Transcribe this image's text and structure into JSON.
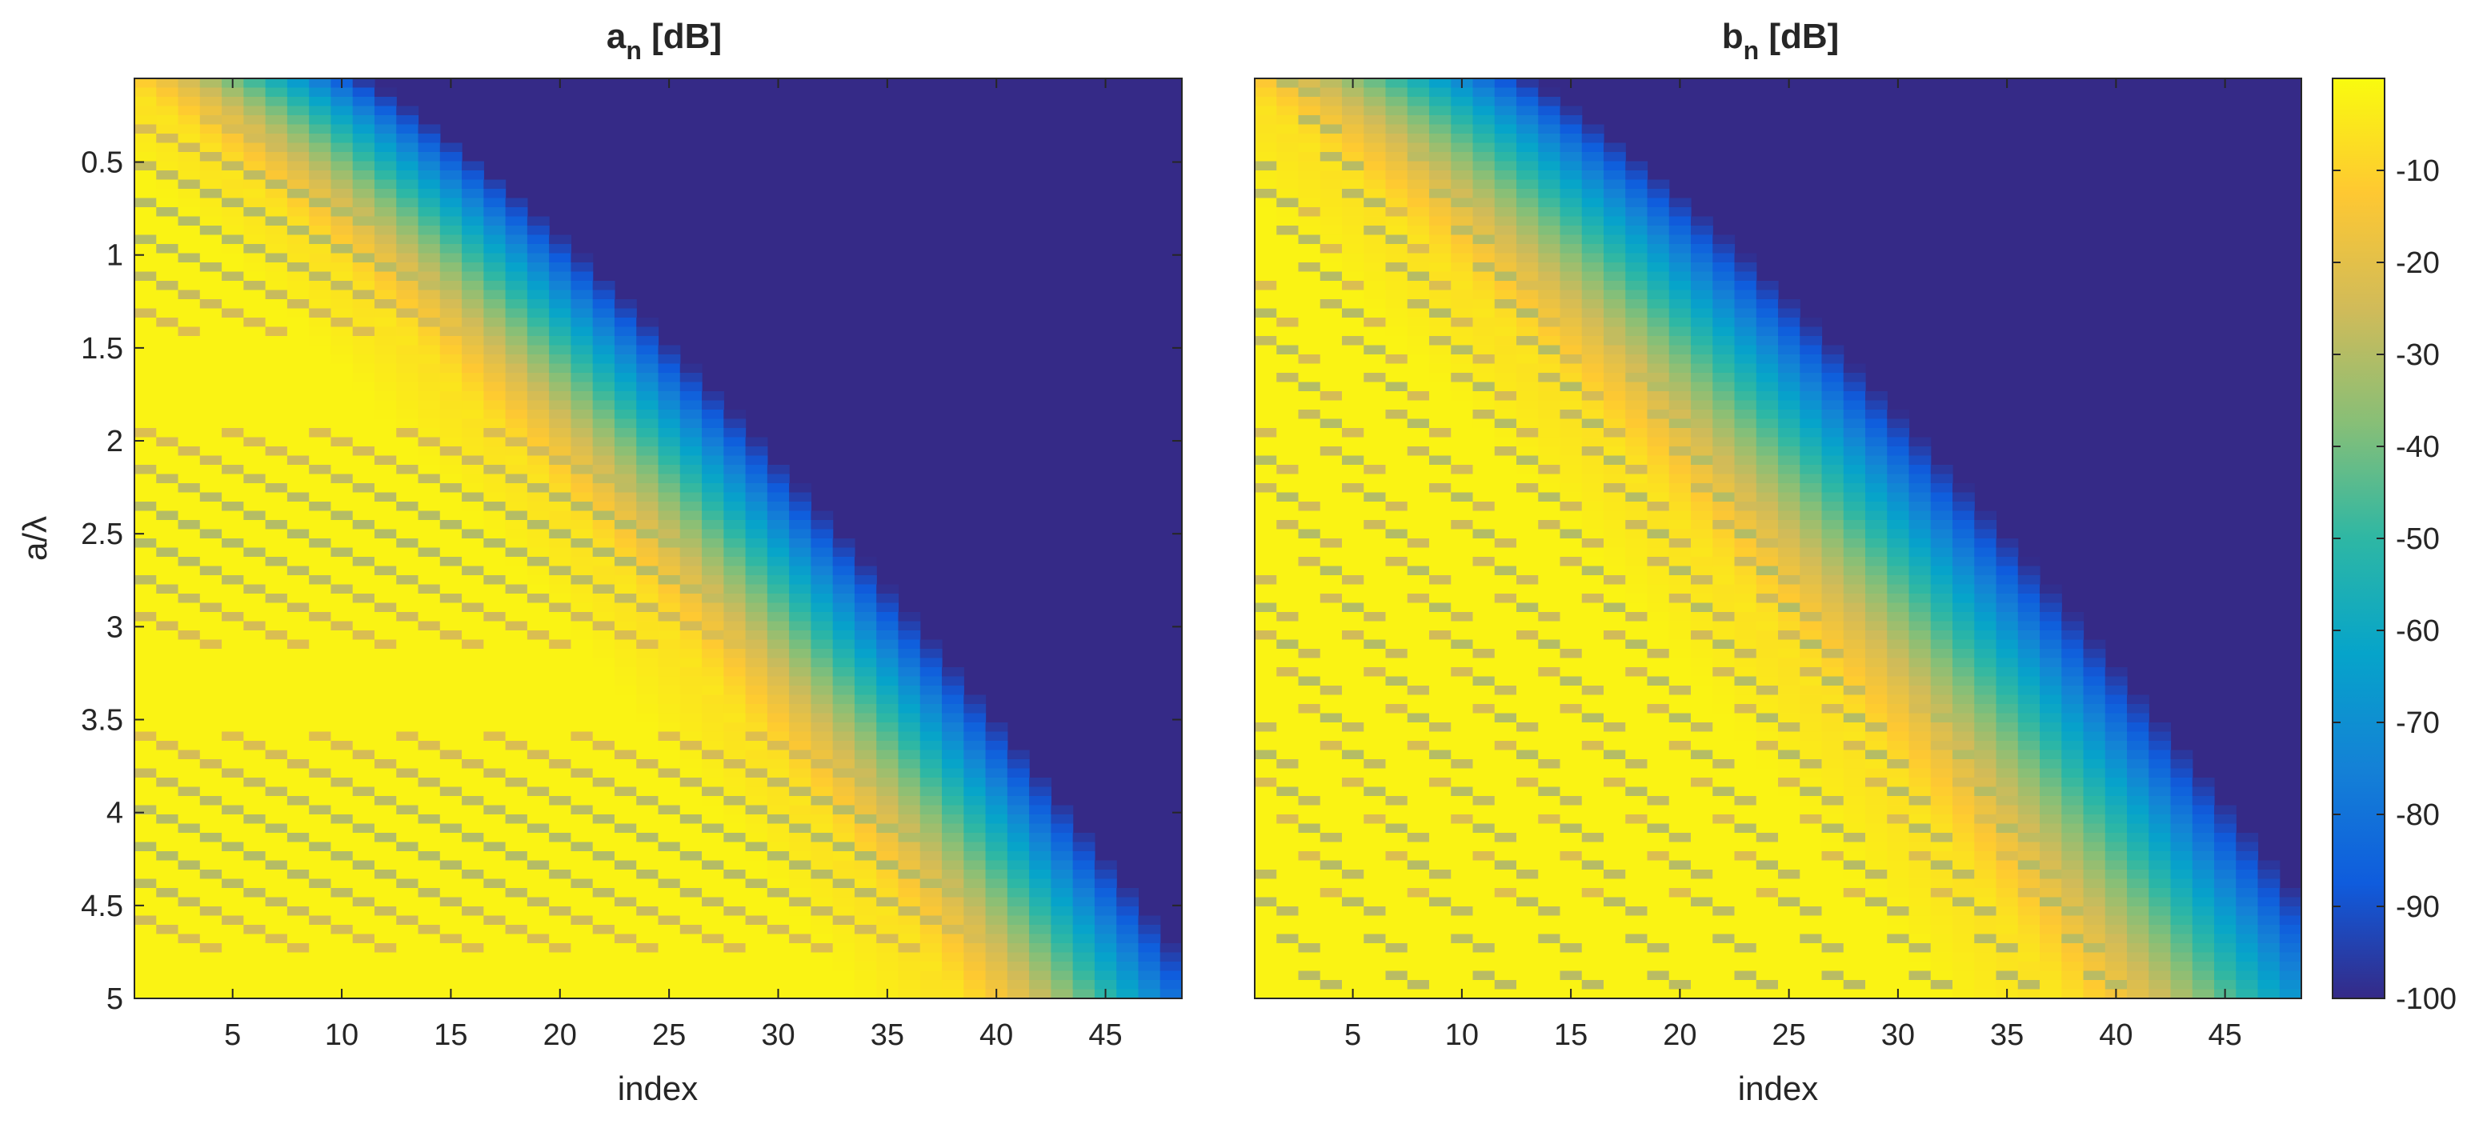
{
  "chart_data": [
    {
      "type": "heatmap",
      "title_main": "a",
      "title_sub": "n",
      "title_rest": " [dB]",
      "xlabel": "index",
      "ylabel": "a/λ",
      "xlim": [
        0.5,
        48.5
      ],
      "ylim": [
        0.05,
        5
      ],
      "y_direction": "reversed",
      "xticks": [
        5,
        10,
        15,
        20,
        25,
        30,
        35,
        40,
        45
      ],
      "yticks": [
        0.5,
        1,
        1.5,
        2,
        2.5,
        3,
        3.5,
        4,
        4.5,
        5
      ],
      "n_index": 48,
      "cutoff_at_ymax": 41,
      "transition_width": 9,
      "stripe_slope": 9.8,
      "stripe_phase": 0.0,
      "stripe_min_db": -30
    },
    {
      "type": "heatmap",
      "title_main": "b",
      "title_sub": "n",
      "title_rest": " [dB]",
      "xlabel": "index",
      "ylabel": "",
      "xlim": [
        0.5,
        48.5
      ],
      "ylim": [
        0.05,
        5
      ],
      "y_direction": "reversed",
      "xticks": [
        5,
        10,
        15,
        20,
        25,
        30,
        35,
        40,
        45
      ],
      "yticks": [],
      "n_index": 48,
      "cutoff_at_ymax": 41,
      "transition_width": 11,
      "stripe_slope": 12.6,
      "stripe_phase": 0.5,
      "stripe_min_db": -30
    }
  ],
  "colorbar": {
    "colormap": "parula",
    "clim": [
      -100,
      0
    ],
    "ticks": [
      -10,
      -20,
      -30,
      -40,
      -50,
      -60,
      -70,
      -80,
      -90,
      -100
    ],
    "colors": [
      "#352a87",
      "#0f5cdd",
      "#1481d6",
      "#06a4ca",
      "#2eb7a4",
      "#87bf77",
      "#d1bb59",
      "#fec832",
      "#f9fb0e"
    ]
  }
}
